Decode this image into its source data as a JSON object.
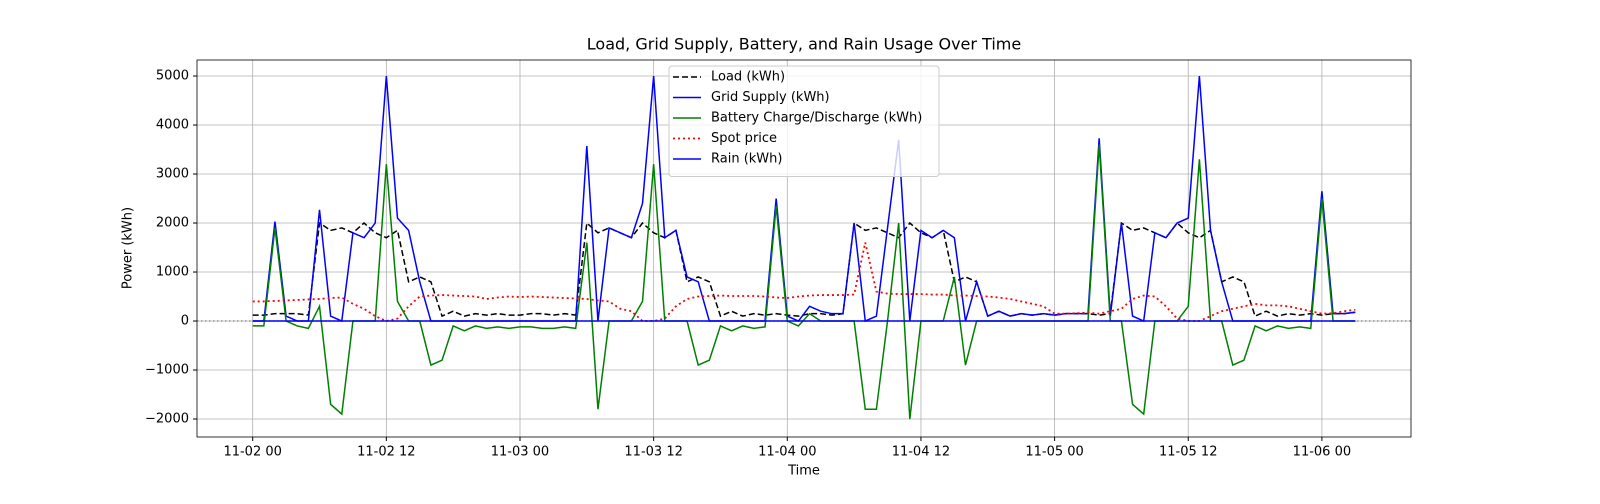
{
  "chart_data": {
    "type": "line",
    "title": "Load, Grid Supply, Battery, and Rain Usage Over Time",
    "xlabel": "Time",
    "ylabel": "Power (kWh)",
    "x": [
      "11-02 00",
      "11-02 01",
      "11-02 02",
      "11-02 03",
      "11-02 04",
      "11-02 05",
      "11-02 06",
      "11-02 07",
      "11-02 08",
      "11-02 09",
      "11-02 10",
      "11-02 11",
      "11-02 12",
      "11-02 13",
      "11-02 14",
      "11-02 15",
      "11-02 16",
      "11-02 17",
      "11-02 18",
      "11-02 19",
      "11-02 20",
      "11-02 21",
      "11-02 22",
      "11-02 23",
      "11-03 00",
      "11-03 01",
      "11-03 02",
      "11-03 03",
      "11-03 04",
      "11-03 05",
      "11-03 06",
      "11-03 07",
      "11-03 08",
      "11-03 09",
      "11-03 10",
      "11-03 11",
      "11-03 12",
      "11-03 13",
      "11-03 14",
      "11-03 15",
      "11-03 16",
      "11-03 17",
      "11-03 18",
      "11-03 19",
      "11-03 20",
      "11-03 21",
      "11-03 22",
      "11-03 23",
      "11-04 00",
      "11-04 01",
      "11-04 02",
      "11-04 03",
      "11-04 04",
      "11-04 05",
      "11-04 06",
      "11-04 07",
      "11-04 08",
      "11-04 09",
      "11-04 10",
      "11-04 11",
      "11-04 12",
      "11-04 13",
      "11-04 14",
      "11-04 15",
      "11-04 16",
      "11-04 17",
      "11-04 18",
      "11-04 19",
      "11-04 20",
      "11-04 21",
      "11-04 22",
      "11-04 23",
      "11-05 00",
      "11-05 01",
      "11-05 02",
      "11-05 03",
      "11-05 04",
      "11-05 05",
      "11-05 06",
      "11-05 07",
      "11-05 08",
      "11-05 09",
      "11-05 10",
      "11-05 11",
      "11-05 12",
      "11-05 13",
      "11-05 14",
      "11-05 15",
      "11-05 16",
      "11-05 17",
      "11-05 18",
      "11-05 19",
      "11-05 20",
      "11-05 21",
      "11-05 22",
      "11-05 23",
      "11-06 00",
      "11-06 01",
      "11-06 02",
      "11-06 03"
    ],
    "series": [
      {
        "name": "Load (kWh)",
        "color": "#000000",
        "style": "dashed",
        "values": [
          120,
          120,
          150,
          150,
          150,
          120,
          2000,
          1850,
          1900,
          1800,
          2000,
          1800,
          1700,
          1850,
          800,
          900,
          800,
          100,
          200,
          100,
          150,
          120,
          150,
          120,
          120,
          150,
          150,
          120,
          150,
          120,
          2000,
          1800,
          1900,
          1800,
          1700,
          2000,
          1800,
          1700,
          1850,
          800,
          900,
          800,
          100,
          200,
          100,
          150,
          120,
          150,
          120,
          100,
          150,
          150,
          120,
          150,
          2000,
          1850,
          1900,
          1800,
          1700,
          2000,
          1800,
          1700,
          1850,
          800,
          900,
          800,
          100,
          200,
          100,
          150,
          120,
          150,
          120,
          150,
          150,
          150,
          120,
          150,
          2000,
          1850,
          1900,
          1800,
          1700,
          2000,
          1800,
          1700,
          1850,
          800,
          900,
          800,
          100,
          200,
          100,
          150,
          120,
          150,
          120,
          150,
          150,
          180
        ]
      },
      {
        "name": "Grid Supply (kWh)",
        "color": "#0000ff",
        "style": "solid",
        "values": [
          0,
          0,
          2030,
          100,
          0,
          0,
          2270,
          100,
          0,
          1800,
          1700,
          2000,
          5000,
          2100,
          1850,
          800,
          0,
          0,
          0,
          0,
          0,
          0,
          0,
          0,
          0,
          0,
          0,
          0,
          0,
          0,
          3570,
          0,
          1900,
          1800,
          1700,
          2400,
          5000,
          1700,
          1850,
          900,
          800,
          0,
          0,
          0,
          0,
          0,
          0,
          2500,
          100,
          0,
          300,
          200,
          150,
          150,
          2000,
          0,
          100,
          1900,
          3700,
          0,
          1850,
          1700,
          1850,
          1700,
          0,
          800,
          100,
          200,
          100,
          150,
          120,
          150,
          120,
          150,
          150,
          150,
          3730,
          100,
          2000,
          100,
          0,
          1800,
          1700,
          2000,
          2100,
          5000,
          1850,
          800,
          0,
          0,
          0,
          0,
          0,
          0,
          0,
          0,
          2650,
          150,
          150,
          180
        ]
      },
      {
        "name": "Battery Charge/Discharge (kWh)",
        "color": "#008000",
        "style": "solid",
        "values": [
          -100,
          -100,
          1900,
          0,
          -100,
          -150,
          300,
          -1700,
          -1900,
          0,
          0,
          0,
          3200,
          400,
          0,
          0,
          -900,
          -800,
          -100,
          -200,
          -100,
          -150,
          -120,
          -150,
          -120,
          -120,
          -150,
          -150,
          -120,
          -150,
          1600,
          -1800,
          0,
          0,
          0,
          400,
          3200,
          0,
          0,
          0,
          -900,
          -800,
          -100,
          -200,
          -100,
          -150,
          -120,
          2350,
          0,
          -100,
          150,
          0,
          0,
          0,
          0,
          -1800,
          -1800,
          0,
          2000,
          -2000,
          0,
          0,
          0,
          900,
          -900,
          0,
          0,
          0,
          0,
          0,
          0,
          0,
          0,
          0,
          0,
          0,
          3600,
          0,
          0,
          -1700,
          -1900,
          0,
          0,
          0,
          300,
          3300,
          0,
          0,
          -900,
          -800,
          -100,
          -200,
          -100,
          -150,
          -120,
          -150,
          2500,
          0,
          0,
          0
        ]
      },
      {
        "name": "Spot price",
        "color": "#ff0000",
        "style": "dotted",
        "values": [
          400,
          400,
          410,
          420,
          430,
          440,
          450,
          470,
          480,
          350,
          250,
          100,
          0,
          50,
          300,
          500,
          520,
          530,
          520,
          510,
          500,
          450,
          480,
          500,
          490,
          500,
          490,
          480,
          470,
          460,
          450,
          420,
          400,
          250,
          200,
          0,
          0,
          50,
          300,
          450,
          500,
          510,
          520,
          510,
          510,
          510,
          500,
          480,
          470,
          500,
          520,
          530,
          530,
          530,
          540,
          1600,
          600,
          560,
          550,
          550,
          550,
          540,
          540,
          520,
          520,
          510,
          500,
          480,
          450,
          400,
          350,
          300,
          150,
          150,
          160,
          170,
          150,
          200,
          250,
          450,
          520,
          500,
          300,
          50,
          0,
          0,
          100,
          200,
          250,
          300,
          350,
          320,
          320,
          300,
          250,
          200,
          150,
          160,
          200,
          230
        ]
      },
      {
        "name": "Rain (kWh)",
        "color": "#0000ff",
        "style": "solid",
        "values": [
          0,
          0,
          0,
          0,
          0,
          0,
          0,
          0,
          0,
          0,
          0,
          0,
          0,
          0,
          0,
          0,
          0,
          0,
          0,
          0,
          0,
          0,
          0,
          0,
          0,
          0,
          0,
          0,
          0,
          0,
          0,
          0,
          0,
          0,
          0,
          0,
          0,
          0,
          0,
          0,
          0,
          0,
          0,
          0,
          0,
          0,
          0,
          0,
          0,
          0,
          0,
          0,
          0,
          0,
          0,
          0,
          0,
          0,
          0,
          0,
          0,
          0,
          0,
          0,
          0,
          0,
          0,
          0,
          0,
          0,
          0,
          0,
          0,
          0,
          0,
          0,
          0,
          0,
          0,
          0,
          0,
          0,
          0,
          0,
          0,
          0,
          0,
          0,
          0,
          0,
          0,
          0,
          0,
          0,
          0,
          0,
          0,
          0,
          0,
          0
        ]
      }
    ],
    "xlim": [
      "11-01 19",
      "11-06 08"
    ],
    "xticks": [
      "11-02 00",
      "11-02 12",
      "11-03 00",
      "11-03 12",
      "11-04 00",
      "11-04 12",
      "11-05 00",
      "11-05 12",
      "11-06 00"
    ],
    "ylim": [
      -2367,
      5327
    ],
    "yticks": [
      {
        "value": -2000,
        "label": "−2000"
      },
      {
        "value": -1000,
        "label": "−1000"
      },
      0,
      1000,
      2000,
      3000,
      4000,
      5000
    ],
    "hline": 0,
    "grid": true,
    "legend": "upper center"
  }
}
